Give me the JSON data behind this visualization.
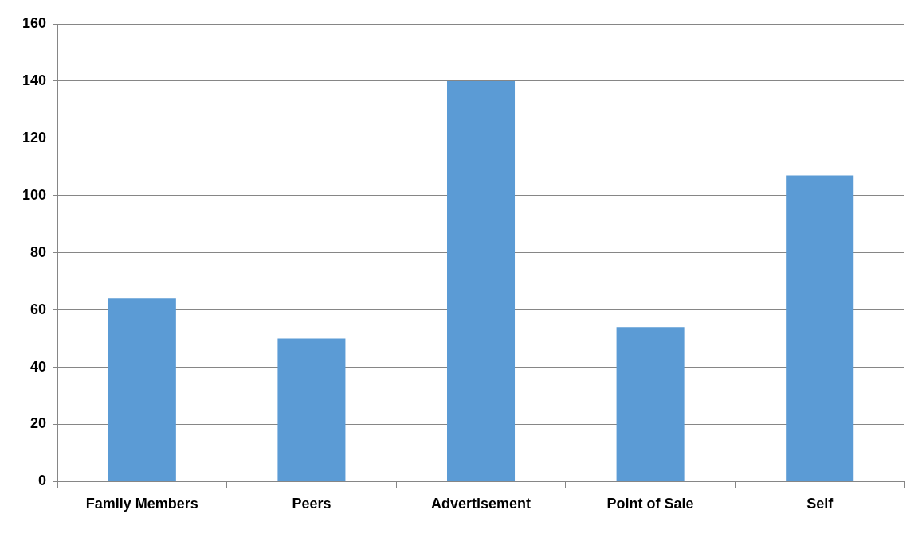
{
  "chart_data": {
    "type": "bar",
    "categories": [
      "Family Members",
      "Peers",
      "Advertisement",
      "Point of Sale",
      "Self"
    ],
    "values": [
      64,
      50,
      140,
      54,
      107
    ],
    "color": "#5b9bd5",
    "ylim": [
      0,
      160
    ],
    "yticks": [
      0,
      20,
      40,
      60,
      80,
      100,
      120,
      140,
      160
    ],
    "grid": "y",
    "legend": false
  }
}
